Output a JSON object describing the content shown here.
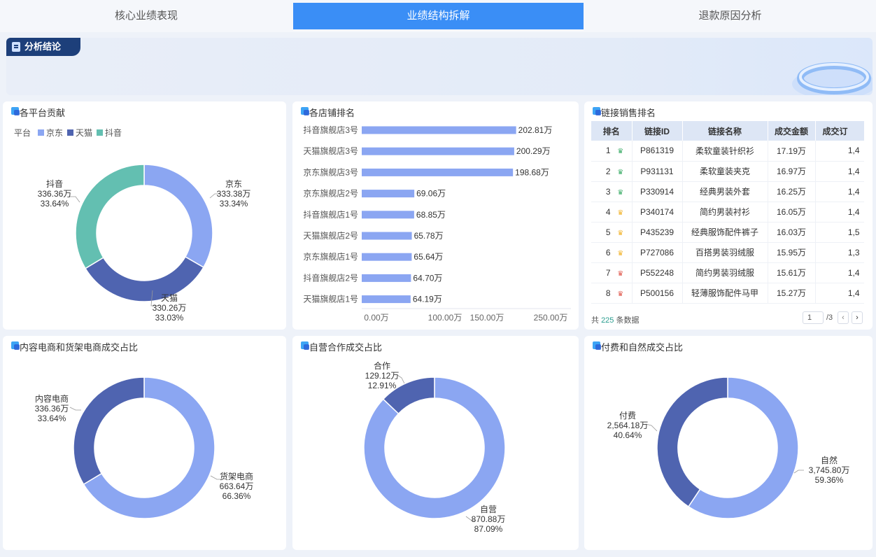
{
  "tabs": [
    {
      "label": "核心业绩表现"
    },
    {
      "label": "业绩结构拆解"
    },
    {
      "label": "退款原因分析"
    }
  ],
  "conclusion": {
    "label": "分析结论"
  },
  "platform_card": {
    "title": "各平台贡献",
    "legend_title": "平台",
    "colors": {
      "京东": "#8ba6f2",
      "天猫": "#4f64b0",
      "抖音": "#63bfb1"
    },
    "labels": [
      {
        "name": "京东",
        "amount": "333.38万",
        "pct": "33.34%"
      },
      {
        "name": "天猫",
        "amount": "330.26万",
        "pct": "33.03%"
      },
      {
        "name": "抖音",
        "amount": "336.36万",
        "pct": "33.64%"
      }
    ]
  },
  "store_card": {
    "title": "各店铺排名",
    "bar_color": "#8ba6f2",
    "axis_ticks": [
      "0.00万",
      "100.00万",
      "150.00万",
      "250.00万"
    ],
    "rows": [
      {
        "name": "抖音旗舰店3号",
        "value_label": "202.81万"
      },
      {
        "name": "天猫旗舰店3号",
        "value_label": "200.29万"
      },
      {
        "name": "京东旗舰店3号",
        "value_label": "198.68万"
      },
      {
        "name": "京东旗舰店2号",
        "value_label": "69.06万"
      },
      {
        "name": "抖音旗舰店1号",
        "value_label": "68.85万"
      },
      {
        "name": "天猫旗舰店2号",
        "value_label": "65.78万"
      },
      {
        "name": "京东旗舰店1号",
        "value_label": "65.64万"
      },
      {
        "name": "抖音旗舰店2号",
        "value_label": "64.70万"
      },
      {
        "name": "天猫旗舰店1号",
        "value_label": "64.19万"
      }
    ]
  },
  "link_card": {
    "title": "链接销售排名",
    "columns": [
      "排名",
      "链接ID",
      "链接名称",
      "成交金额",
      "成交订"
    ],
    "rows": [
      {
        "rank": "1",
        "crown": "green",
        "id": "P861319",
        "name": "柔软童装针织衫",
        "amount": "17.19万",
        "orders": "1,4"
      },
      {
        "rank": "2",
        "crown": "green",
        "id": "P931131",
        "name": "柔软童装夹克",
        "amount": "16.97万",
        "orders": "1,4"
      },
      {
        "rank": "3",
        "crown": "green",
        "id": "P330914",
        "name": "经典男装外套",
        "amount": "16.25万",
        "orders": "1,4"
      },
      {
        "rank": "4",
        "crown": "gold",
        "id": "P340174",
        "name": "简约男装衬衫",
        "amount": "16.05万",
        "orders": "1,4"
      },
      {
        "rank": "5",
        "crown": "gold",
        "id": "P435239",
        "name": "经典服饰配件裤子",
        "amount": "16.03万",
        "orders": "1,5"
      },
      {
        "rank": "6",
        "crown": "gold",
        "id": "P727086",
        "name": "百搭男装羽绒服",
        "amount": "15.95万",
        "orders": "1,3"
      },
      {
        "rank": "7",
        "crown": "red",
        "id": "P552248",
        "name": "简约男装羽绒服",
        "amount": "15.61万",
        "orders": "1,4"
      },
      {
        "rank": "8",
        "crown": "red",
        "id": "P500156",
        "name": "轻薄服饰配件马甲",
        "amount": "15.27万",
        "orders": "1,4"
      }
    ],
    "crown_colors": {
      "green": "#3fae6a",
      "gold": "#f2b530",
      "red": "#e05a4f"
    },
    "footer": {
      "prefix": "共",
      "count": "225",
      "suffix": "条数据",
      "page": "1",
      "total": "/3",
      "prev": "‹",
      "next": "›"
    }
  },
  "content_card": {
    "title": "内容电商和货架电商成交占比",
    "labels": [
      {
        "name": "内容电商",
        "amount": "336.36万",
        "pct": "33.64%"
      },
      {
        "name": "货架电商",
        "amount": "663.64万",
        "pct": "66.36%"
      }
    ]
  },
  "self_card": {
    "title": "自营合作成交占比",
    "labels": [
      {
        "name": "合作",
        "amount": "129.12万",
        "pct": "12.91%"
      },
      {
        "name": "自营",
        "amount": "870.88万",
        "pct": "87.09%"
      }
    ]
  },
  "paid_card": {
    "title": "付费和自然成交占比",
    "labels": [
      {
        "name": "付费",
        "amount": "2,564.18万",
        "pct": "40.64%"
      },
      {
        "name": "自然",
        "amount": "3,745.80万",
        "pct": "59.36%"
      }
    ]
  },
  "chart_data": [
    {
      "type": "pie",
      "title": "各平台贡献",
      "categories": [
        "京东",
        "天猫",
        "抖音"
      ],
      "values": [
        333.38,
        330.26,
        336.36
      ],
      "percentages": [
        33.34,
        33.03,
        33.64
      ],
      "legend": "top-left"
    },
    {
      "type": "bar",
      "title": "各店铺排名",
      "orientation": "horizontal",
      "categories": [
        "抖音旗舰店3号",
        "天猫旗舰店3号",
        "京东旗舰店3号",
        "京东旗舰店2号",
        "抖音旗舰店1号",
        "天猫旗舰店2号",
        "京东旗舰店1号",
        "抖音旗舰店2号",
        "天猫旗舰店1号"
      ],
      "values": [
        202.81,
        200.29,
        198.68,
        69.06,
        68.85,
        65.78,
        65.64,
        64.7,
        64.19
      ],
      "xlim": [
        0,
        250
      ]
    },
    {
      "type": "pie",
      "title": "内容电商和货架电商成交占比",
      "categories": [
        "内容电商",
        "货架电商"
      ],
      "values": [
        336.36,
        663.64
      ],
      "percentages": [
        33.64,
        66.36
      ]
    },
    {
      "type": "pie",
      "title": "自营合作成交占比",
      "categories": [
        "合作",
        "自营"
      ],
      "values": [
        129.12,
        870.88
      ],
      "percentages": [
        12.91,
        87.09
      ]
    },
    {
      "type": "pie",
      "title": "付费和自然成交占比",
      "categories": [
        "付费",
        "自然"
      ],
      "values": [
        2564.18,
        3745.8
      ],
      "percentages": [
        40.64,
        59.36
      ]
    }
  ]
}
